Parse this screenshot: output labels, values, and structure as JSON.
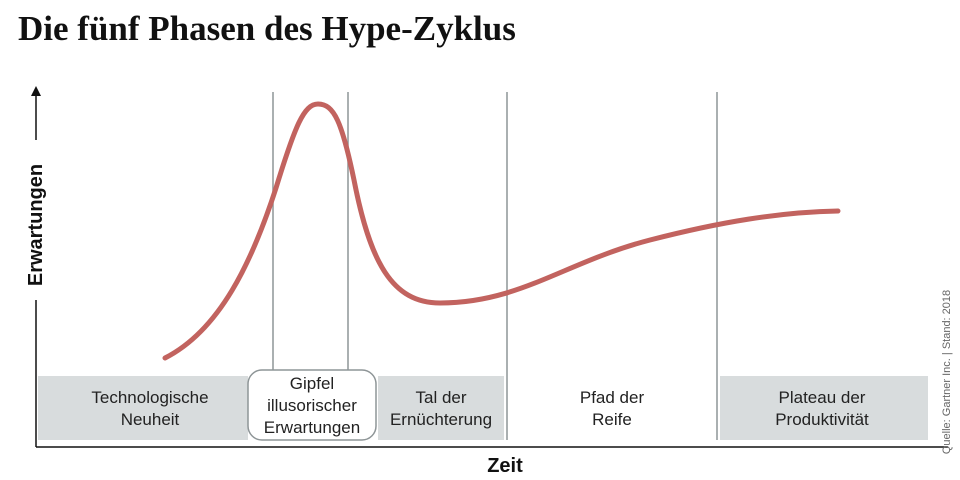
{
  "title": "Die fünf Phasen des Hype-Zyklus",
  "y_axis_label": "Erwartungen",
  "x_axis_label": "Zeit",
  "phases": [
    {
      "lines": [
        "Technologische",
        "Neuheit"
      ]
    },
    {
      "lines": [
        "Gipfel",
        "illusorischer",
        "Erwartungen"
      ]
    },
    {
      "lines": [
        "Tal der",
        "Ernüchterung"
      ]
    },
    {
      "lines": [
        "Pfad der",
        "Reife"
      ]
    },
    {
      "lines": [
        "Plateau der",
        "Produktivität"
      ]
    }
  ],
  "source": "Quelle: Gartner Inc. | Stand: 2018"
}
